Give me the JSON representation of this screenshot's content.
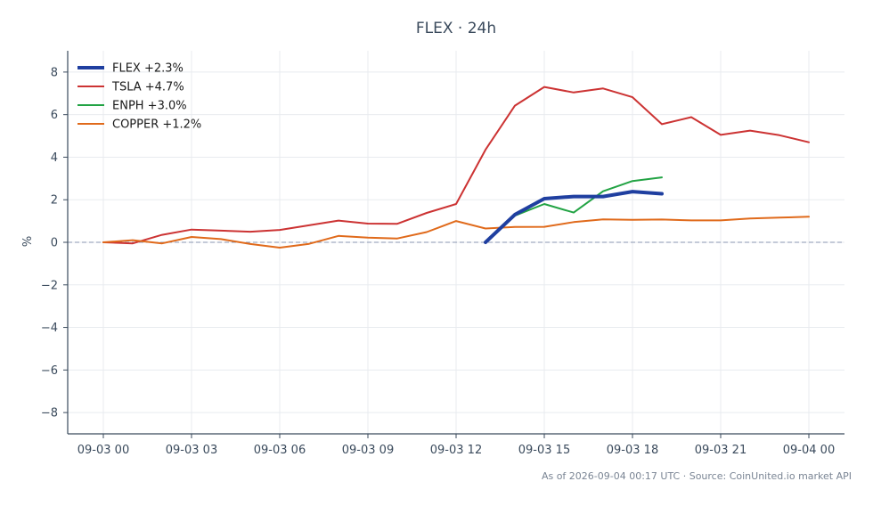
{
  "chart_data": {
    "type": "line",
    "title": "FLEX · 24h",
    "xlabel": "",
    "ylabel": "%",
    "footer": "As of 2026-09-04 00:17 UTC · Source: CoinUnited.io market API",
    "xlim": [
      "2026-09-03 00:00",
      "2026-09-04 00:00"
    ],
    "ylim": [
      -9,
      9
    ],
    "x_ticks": [
      "09-03 00",
      "09-03 03",
      "09-03 06",
      "09-03 09",
      "09-03 12",
      "09-03 15",
      "09-03 18",
      "09-03 21",
      "09-04 00"
    ],
    "y_ticks": [
      -8,
      -6,
      -4,
      -2,
      0,
      2,
      4,
      6,
      8
    ],
    "y_tick_labels": [
      "−8",
      "−6",
      "−4",
      "−2",
      "0",
      "2",
      "4",
      "6",
      "8"
    ],
    "grid": true,
    "zero_line": true,
    "legend_position": "top-left",
    "x": [
      "09-03 00",
      "09-03 01",
      "09-03 02",
      "09-03 03",
      "09-03 04",
      "09-03 05",
      "09-03 06",
      "09-03 07",
      "09-03 08",
      "09-03 09",
      "09-03 10",
      "09-03 11",
      "09-03 12",
      "09-03 13",
      "09-03 14",
      "09-03 15",
      "09-03 16",
      "09-03 17",
      "09-03 18",
      "09-03 19",
      "09-03 20",
      "09-03 21",
      "09-03 22",
      "09-03 23",
      "09-04 00"
    ],
    "series": [
      {
        "name": "TSLA +4.7%",
        "color": "#cc3333",
        "values": [
          0.0,
          -0.05,
          0.35,
          0.6,
          0.55,
          0.5,
          0.58,
          0.8,
          1.02,
          0.88,
          0.87,
          1.38,
          1.8,
          4.35,
          6.42,
          7.3,
          7.04,
          7.23,
          6.82,
          5.55,
          5.88,
          5.05,
          5.25,
          5.03,
          4.7
        ]
      },
      {
        "name": "COPPER +1.2%",
        "color": "#e06a1b",
        "values": [
          0.0,
          0.1,
          -0.05,
          0.25,
          0.15,
          -0.08,
          -0.25,
          -0.07,
          0.3,
          0.22,
          0.18,
          0.48,
          1.0,
          0.65,
          0.72,
          0.73,
          0.95,
          1.08,
          1.06,
          1.07,
          1.03,
          1.03,
          1.12,
          1.16,
          1.2
        ]
      },
      {
        "name": "ENPH +3.0%",
        "color": "#22a344",
        "values": [
          null,
          null,
          null,
          null,
          null,
          null,
          null,
          null,
          null,
          null,
          null,
          null,
          null,
          -0.02,
          1.25,
          1.8,
          1.4,
          2.4,
          2.88,
          3.05,
          null,
          null,
          null,
          null,
          null
        ]
      },
      {
        "name": "FLEX +2.3%",
        "color": "#1f3fa0",
        "values": [
          null,
          null,
          null,
          null,
          null,
          null,
          null,
          null,
          null,
          null,
          null,
          null,
          null,
          0.0,
          1.3,
          2.05,
          2.15,
          2.15,
          2.38,
          2.28,
          null,
          null,
          null,
          null,
          null
        ]
      }
    ],
    "legend_order": [
      "FLEX +2.3%",
      "TSLA +4.7%",
      "ENPH +3.0%",
      "COPPER +1.2%"
    ]
  }
}
